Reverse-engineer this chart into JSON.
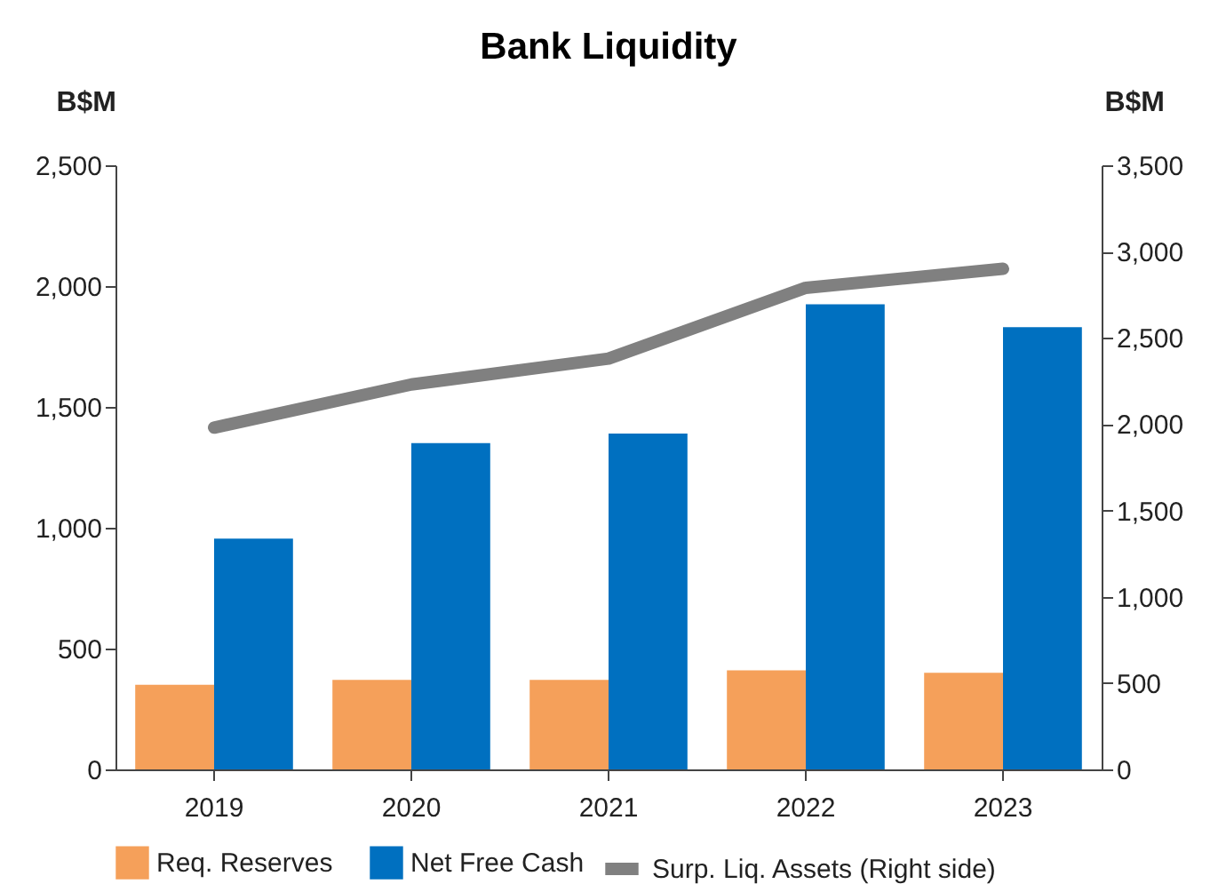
{
  "chart_data": {
    "type": "bar",
    "title": "Bank Liquidity",
    "ylabel": "B$M",
    "y2label": "B$M",
    "categories": [
      "2019",
      "2020",
      "2021",
      "2022",
      "2023"
    ],
    "series": [
      {
        "name": "Req. Reserves",
        "color": "#f5a05a",
        "values": [
          350,
          370,
          370,
          410,
          400
        ]
      },
      {
        "name": "Net Free Cash",
        "color": "#0070c0",
        "values": [
          955,
          1350,
          1390,
          1925,
          1830
        ]
      },
      {
        "name": "Surp. Liq. Assets (Right side)",
        "color": "#808080",
        "type": "line",
        "axis": "y2",
        "values": [
          1980,
          2230,
          2380,
          2790,
          2900
        ]
      }
    ],
    "ylim": [
      0,
      2500
    ],
    "yticks": [
      0,
      500,
      {
        "value": 1000,
        "label": "1,000"
      },
      {
        "value": 1500,
        "label": "1,500"
      },
      {
        "value": 2000,
        "label": "2,000"
      },
      {
        "value": 2500,
        "label": "2,500"
      }
    ],
    "y2lim": [
      0,
      3500
    ],
    "y2ticks": [
      0,
      500,
      {
        "value": 1000,
        "label": "1,000"
      },
      {
        "value": 1500,
        "label": "1,500"
      },
      {
        "value": 2000,
        "label": "2,000"
      },
      {
        "value": 2500,
        "label": "2,500"
      },
      {
        "value": 3000,
        "label": "3,000"
      },
      {
        "value": 3500,
        "label": "3,500"
      }
    ],
    "grid": false,
    "legend": "bottom"
  }
}
